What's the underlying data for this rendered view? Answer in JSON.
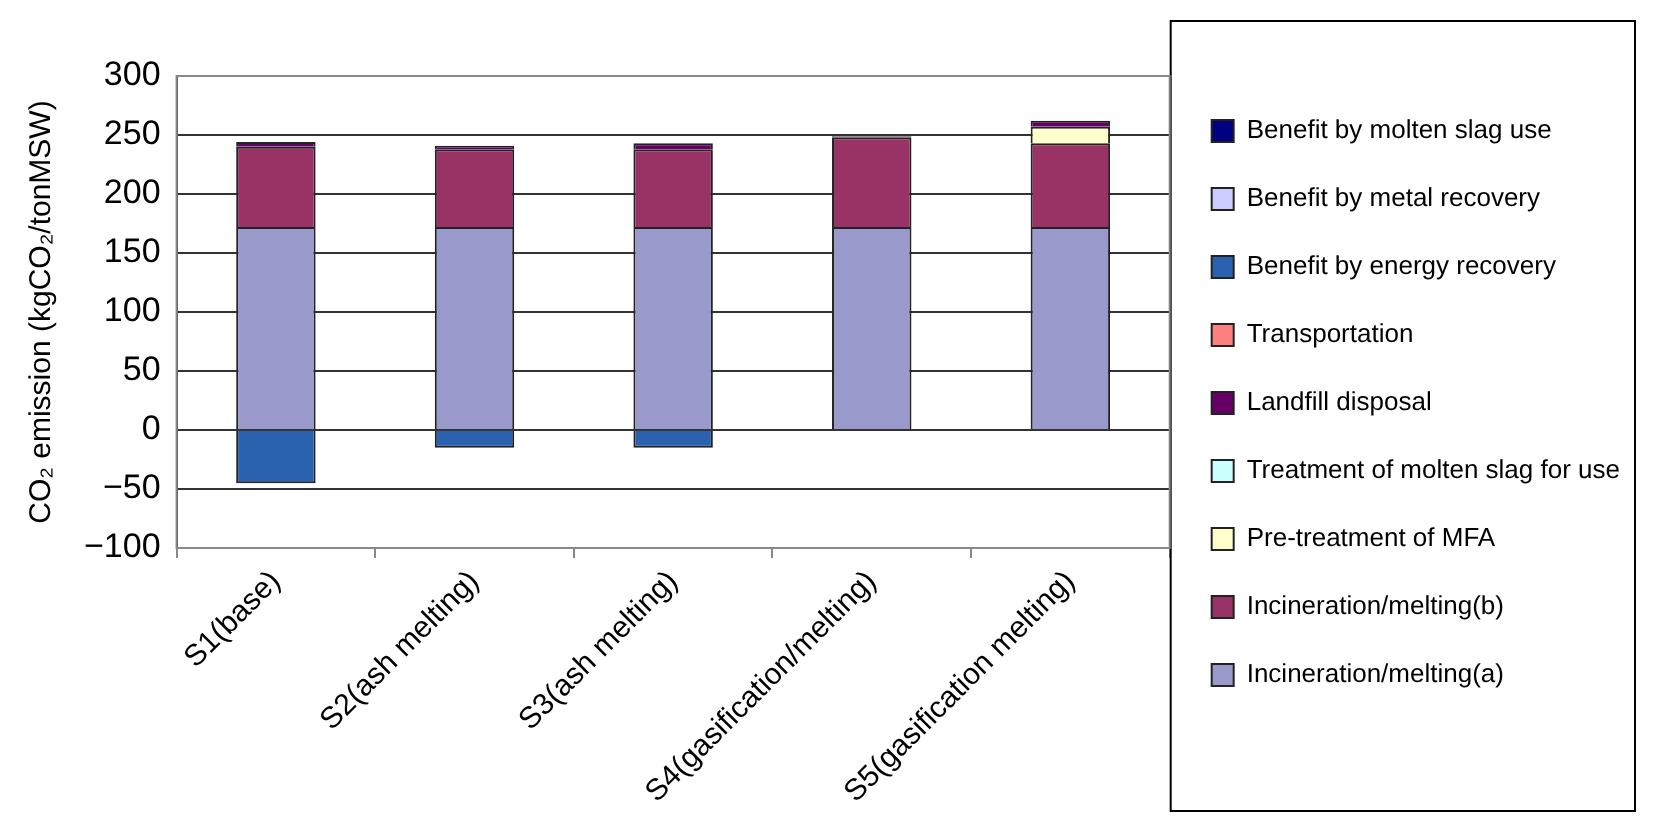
{
  "chart_data": {
    "type": "bar",
    "stacked": true,
    "ylabel": "CO₂ emission (kgCO₂/tonMSW)",
    "categories": [
      "S1(base)",
      "S2(ash melting)",
      "S3(ash melting)",
      "S4(gasification/melting)",
      "S5(gasification melting)"
    ],
    "series": [
      {
        "name": "Incineration/melting(a)",
        "color": "#9999cc",
        "values": [
          172,
          172,
          172,
          172,
          172
        ]
      },
      {
        "name": "Incineration/melting(b)",
        "color": "#993366",
        "values": [
          68,
          66,
          66,
          76,
          71
        ]
      },
      {
        "name": "Pre-treatment of MFA",
        "color": "#ffffcc",
        "values": [
          0,
          0,
          0,
          0,
          14
        ]
      },
      {
        "name": "Treatment of molten slag for use",
        "color": "#ccffff",
        "values": [
          0,
          0,
          0,
          0,
          0
        ]
      },
      {
        "name": "Landfill disposal",
        "color": "#660066",
        "values": [
          4,
          3,
          5,
          1,
          5
        ]
      },
      {
        "name": "Transportation",
        "color": "#ff8080",
        "values": [
          0,
          0,
          0,
          0,
          0
        ]
      },
      {
        "name": "Benefit by energy recovery",
        "color": "#2a62b0",
        "values": [
          -45,
          -15,
          -15,
          0,
          0
        ]
      },
      {
        "name": "Benefit by metal recovery",
        "color": "#ccccff",
        "values": [
          0,
          0,
          0,
          0,
          0
        ]
      },
      {
        "name": "Benefit by molten slag use",
        "color": "#000080",
        "values": [
          0,
          0,
          0,
          0,
          0
        ]
      }
    ],
    "ylim": [
      -100,
      300
    ],
    "yticks": [
      -100,
      -50,
      0,
      50,
      100,
      150,
      200,
      250,
      300
    ],
    "grid": "y",
    "legend": "right"
  }
}
